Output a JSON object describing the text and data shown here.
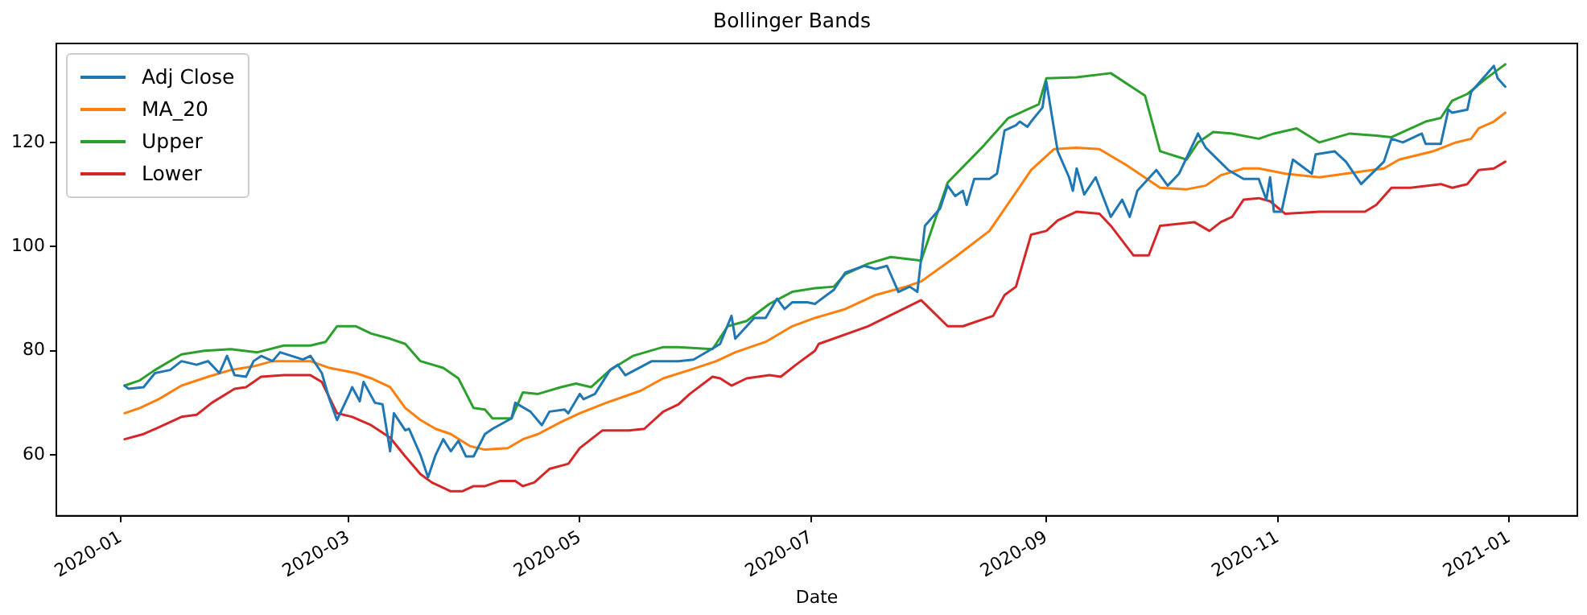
{
  "chart_data": {
    "type": "line",
    "title": "Bollinger Bands",
    "xlabel": "Date",
    "xlim": [
      "2019-12-15",
      "2021-01-19"
    ],
    "xticks": [
      "2020-01",
      "2020-03",
      "2020-05",
      "2020-07",
      "2020-09",
      "2020-11",
      "2021-01"
    ],
    "ylim": [
      48.3,
      139
    ],
    "yticks": [
      60,
      80,
      100,
      120
    ],
    "grid": false,
    "legend": "top left",
    "marker": "none",
    "line_style": "solid",
    "series": [
      {
        "name": "Adj Close",
        "color": "#1f77b4",
        "x": [
          "2020-01-02",
          "2020-01-03",
          "2020-01-07",
          "2020-01-10",
          "2020-01-14",
          "2020-01-17",
          "2020-01-21",
          "2020-01-24",
          "2020-01-27",
          "2020-01-29",
          "2020-01-31",
          "2020-02-03",
          "2020-02-05",
          "2020-02-07",
          "2020-02-10",
          "2020-02-12",
          "2020-02-18",
          "2020-02-20",
          "2020-02-23",
          "2020-02-25",
          "2020-02-27",
          "2020-03-01",
          "2020-03-02",
          "2020-03-04",
          "2020-03-05",
          "2020-03-08",
          "2020-03-10",
          "2020-03-12",
          "2020-03-13",
          "2020-03-16",
          "2020-03-17",
          "2020-03-20",
          "2020-03-22",
          "2020-03-24",
          "2020-03-26",
          "2020-03-28",
          "2020-03-30",
          "2020-04-01",
          "2020-04-03",
          "2020-04-06",
          "2020-04-08",
          "2020-04-13",
          "2020-04-14",
          "2020-04-18",
          "2020-04-21",
          "2020-04-23",
          "2020-04-27",
          "2020-04-28",
          "2020-05-01",
          "2020-05-02",
          "2020-05-05",
          "2020-05-09",
          "2020-05-11",
          "2020-05-13",
          "2020-05-20",
          "2020-05-27",
          "2020-05-31",
          "2020-06-04",
          "2020-06-07",
          "2020-06-10",
          "2020-06-11",
          "2020-06-16",
          "2020-06-19",
          "2020-06-22",
          "2020-06-24",
          "2020-06-26",
          "2020-06-30",
          "2020-07-02",
          "2020-07-07",
          "2020-07-10",
          "2020-07-15",
          "2020-07-18",
          "2020-07-21",
          "2020-07-24",
          "2020-07-27",
          "2020-07-29",
          "2020-07-31",
          "2020-08-04",
          "2020-08-06",
          "2020-08-08",
          "2020-08-10",
          "2020-08-11",
          "2020-08-13",
          "2020-08-17",
          "2020-08-19",
          "2020-08-21",
          "2020-08-24",
          "2020-08-25",
          "2020-08-27",
          "2020-08-28",
          "2020-08-31",
          "2020-09-01",
          "2020-09-04",
          "2020-09-07",
          "2020-09-08",
          "2020-09-09",
          "2020-09-11",
          "2020-09-14",
          "2020-09-18",
          "2020-09-21",
          "2020-09-23",
          "2020-09-25",
          "2020-09-30",
          "2020-10-03",
          "2020-10-06",
          "2020-10-11",
          "2020-10-13",
          "2020-10-19",
          "2020-10-23",
          "2020-10-27",
          "2020-10-29",
          "2020-10-30",
          "2020-10-31",
          "2020-11-02",
          "2020-11-05",
          "2020-11-10",
          "2020-11-11",
          "2020-11-16",
          "2020-11-19",
          "2020-11-23",
          "2020-11-29",
          "2020-12-01",
          "2020-12-04",
          "2020-12-09",
          "2020-12-10",
          "2020-12-14",
          "2020-12-16",
          "2020-12-17",
          "2020-12-21",
          "2020-12-22",
          "2020-12-28",
          "2020-12-29",
          "2020-12-31"
        ],
        "values": [
          73.3,
          72.7,
          73,
          75.7,
          76.3,
          78,
          77.3,
          78,
          75.7,
          79,
          75.3,
          75,
          78,
          79,
          78,
          79.7,
          78.3,
          79,
          75.7,
          70.7,
          66.7,
          71.3,
          73,
          70.3,
          74,
          70,
          69.7,
          60.7,
          68,
          64.7,
          65,
          60,
          55.7,
          60,
          63,
          60.7,
          62.7,
          59.7,
          59.7,
          64,
          65,
          67,
          70,
          68.3,
          65.7,
          68.3,
          68.7,
          68,
          71.7,
          70.7,
          71.7,
          76.3,
          77.3,
          75.3,
          78,
          78,
          78.3,
          80,
          81.3,
          86.7,
          82.3,
          86.3,
          86.3,
          90,
          88,
          89.3,
          89.3,
          89,
          91.7,
          95,
          96.3,
          95.7,
          96.3,
          91.3,
          92.3,
          91.3,
          104,
          107.3,
          111.7,
          109.7,
          110.7,
          108,
          113,
          113,
          114,
          122.3,
          123.3,
          124,
          123,
          124,
          126.7,
          131.7,
          118.3,
          113.3,
          110.7,
          115,
          110,
          113.3,
          105.7,
          109,
          105.7,
          110.7,
          114.7,
          111.7,
          114,
          121.7,
          119,
          114.7,
          113,
          113,
          109,
          113.3,
          106.7,
          106.7,
          116.7,
          114,
          117.7,
          118.3,
          116.3,
          112,
          116.3,
          120.7,
          120,
          121.7,
          119.7,
          119.7,
          126.3,
          125.7,
          126.3,
          129.7,
          134.7,
          132.3,
          130.7
        ]
      },
      {
        "name": "MA_20",
        "color": "#ff7f0e",
        "x": [
          "2020-01-02",
          "2020-01-06",
          "2020-01-11",
          "2020-01-17",
          "2020-01-24",
          "2020-01-30",
          "2020-02-05",
          "2020-02-10",
          "2020-02-20",
          "2020-02-25",
          "2020-03-03",
          "2020-03-07",
          "2020-03-12",
          "2020-03-16",
          "2020-03-20",
          "2020-03-24",
          "2020-03-28",
          "2020-04-02",
          "2020-04-06",
          "2020-04-12",
          "2020-04-16",
          "2020-04-20",
          "2020-04-26",
          "2020-05-01",
          "2020-05-08",
          "2020-05-17",
          "2020-05-23",
          "2020-05-30",
          "2020-06-06",
          "2020-06-11",
          "2020-06-19",
          "2020-06-26",
          "2020-07-02",
          "2020-07-10",
          "2020-07-18",
          "2020-07-26",
          "2020-07-30",
          "2020-08-08",
          "2020-08-17",
          "2020-08-22",
          "2020-08-28",
          "2020-09-03",
          "2020-09-09",
          "2020-09-15",
          "2020-09-22",
          "2020-10-01",
          "2020-10-08",
          "2020-10-13",
          "2020-10-17",
          "2020-10-23",
          "2020-10-27",
          "2020-11-03",
          "2020-11-12",
          "2020-11-22",
          "2020-11-29",
          "2020-12-03",
          "2020-12-12",
          "2020-12-18",
          "2020-12-22",
          "2020-12-24",
          "2020-12-28",
          "2020-12-31"
        ],
        "values": [
          68,
          69,
          70.7,
          73.3,
          75,
          76.3,
          77,
          78,
          78,
          76.7,
          75.7,
          74.7,
          73,
          69,
          66.7,
          65,
          64,
          61.7,
          61,
          61.3,
          63,
          64,
          66.3,
          68,
          70,
          72.3,
          74.7,
          76.3,
          78,
          79.7,
          81.7,
          84.7,
          86.3,
          88,
          90.7,
          92.3,
          93.3,
          98,
          103,
          108.3,
          114.7,
          118.7,
          119,
          118.7,
          115.7,
          111.3,
          111,
          111.7,
          113.7,
          115,
          115,
          114,
          113.3,
          114.3,
          115,
          116.7,
          118.3,
          120,
          120.7,
          122.7,
          124,
          125.7
        ]
      },
      {
        "name": "Upper",
        "color": "#2ca02c",
        "x": [
          "2020-01-02",
          "2020-01-06",
          "2020-01-10",
          "2020-01-17",
          "2020-01-23",
          "2020-01-30",
          "2020-02-06",
          "2020-02-13",
          "2020-02-20",
          "2020-02-24",
          "2020-02-27",
          "2020-03-03",
          "2020-03-07",
          "2020-03-12",
          "2020-03-16",
          "2020-03-20",
          "2020-03-26",
          "2020-03-30",
          "2020-04-03",
          "2020-04-06",
          "2020-04-08",
          "2020-04-13",
          "2020-04-16",
          "2020-04-20",
          "2020-04-26",
          "2020-04-30",
          "2020-05-04",
          "2020-05-09",
          "2020-05-15",
          "2020-05-23",
          "2020-05-27",
          "2020-06-05",
          "2020-06-09",
          "2020-06-14",
          "2020-06-20",
          "2020-06-26",
          "2020-07-02",
          "2020-07-07",
          "2020-07-10",
          "2020-07-16",
          "2020-07-22",
          "2020-07-30",
          "2020-08-06",
          "2020-08-15",
          "2020-08-22",
          "2020-08-30",
          "2020-09-01",
          "2020-09-09",
          "2020-09-18",
          "2020-09-27",
          "2020-10-01",
          "2020-10-08",
          "2020-10-11",
          "2020-10-15",
          "2020-10-20",
          "2020-10-27",
          "2020-10-31",
          "2020-11-06",
          "2020-11-12",
          "2020-11-20",
          "2020-11-27",
          "2020-12-01",
          "2020-12-10",
          "2020-12-14",
          "2020-12-17",
          "2020-12-21",
          "2020-12-26",
          "2020-12-31"
        ],
        "values": [
          73.3,
          74.3,
          76.3,
          79.3,
          80,
          80.3,
          79.7,
          81,
          81,
          81.7,
          84.7,
          84.7,
          83.3,
          82.3,
          81.3,
          78,
          76.7,
          74.7,
          69,
          68.7,
          67,
          67,
          72,
          71.7,
          73,
          73.7,
          73,
          76.3,
          79,
          80.7,
          80.7,
          80.3,
          84.7,
          85.7,
          89,
          91.3,
          92,
          92.3,
          94.7,
          96.7,
          98,
          97.3,
          112.3,
          119,
          124.7,
          127.3,
          132.3,
          132.5,
          133.3,
          129,
          118.3,
          116.7,
          120,
          122,
          121.7,
          120.7,
          121.7,
          122.7,
          120,
          121.7,
          121.3,
          121,
          124,
          124.7,
          128,
          129.3,
          132.3,
          135
        ]
      },
      {
        "name": "Lower",
        "color": "#d62728",
        "x": [
          "2020-01-02",
          "2020-01-07",
          "2020-01-11",
          "2020-01-17",
          "2020-01-21",
          "2020-01-25",
          "2020-01-31",
          "2020-02-03",
          "2020-02-07",
          "2020-02-13",
          "2020-02-20",
          "2020-02-23",
          "2020-02-27",
          "2020-03-02",
          "2020-03-07",
          "2020-03-12",
          "2020-03-16",
          "2020-03-20",
          "2020-03-23",
          "2020-03-28",
          "2020-03-31",
          "2020-04-03",
          "2020-04-06",
          "2020-04-10",
          "2020-04-14",
          "2020-04-16",
          "2020-04-19",
          "2020-04-23",
          "2020-04-28",
          "2020-05-01",
          "2020-05-07",
          "2020-05-14",
          "2020-05-18",
          "2020-05-23",
          "2020-05-27",
          "2020-05-30",
          "2020-06-05",
          "2020-06-07",
          "2020-06-10",
          "2020-06-14",
          "2020-06-20",
          "2020-06-23",
          "2020-06-27",
          "2020-07-02",
          "2020-07-03",
          "2020-07-16",
          "2020-07-30",
          "2020-08-06",
          "2020-08-10",
          "2020-08-18",
          "2020-08-21",
          "2020-08-24",
          "2020-08-28",
          "2020-09-01",
          "2020-09-04",
          "2020-09-09",
          "2020-09-15",
          "2020-09-18",
          "2020-09-24",
          "2020-09-28",
          "2020-10-01",
          "2020-10-10",
          "2020-10-14",
          "2020-10-17",
          "2020-10-20",
          "2020-10-23",
          "2020-10-27",
          "2020-10-30",
          "2020-11-03",
          "2020-11-12",
          "2020-11-24",
          "2020-11-27",
          "2020-12-01",
          "2020-12-06",
          "2020-12-14",
          "2020-12-17",
          "2020-12-21",
          "2020-12-24",
          "2020-12-28",
          "2020-12-31"
        ],
        "values": [
          63,
          64,
          65.3,
          67.3,
          67.7,
          70,
          72.7,
          73,
          75,
          75.3,
          75.3,
          74,
          68,
          67.3,
          65.7,
          63.3,
          59.7,
          56.3,
          54.7,
          53,
          53,
          54,
          54,
          55,
          55,
          54,
          54.7,
          57.3,
          58.3,
          61.3,
          64.7,
          64.7,
          65,
          68.3,
          69.7,
          71.7,
          75,
          74.7,
          73.3,
          74.7,
          75.3,
          75,
          77.3,
          80,
          81.3,
          84.7,
          89.7,
          84.7,
          84.7,
          86.7,
          90.7,
          92.3,
          102.3,
          103,
          105,
          106.7,
          106.3,
          104,
          98.3,
          98.3,
          104,
          104.7,
          103,
          104.7,
          105.7,
          109,
          109.3,
          108.7,
          106.3,
          106.7,
          106.7,
          108,
          111.3,
          111.3,
          112,
          111.3,
          112,
          114.7,
          115,
          116.3
        ]
      }
    ]
  }
}
